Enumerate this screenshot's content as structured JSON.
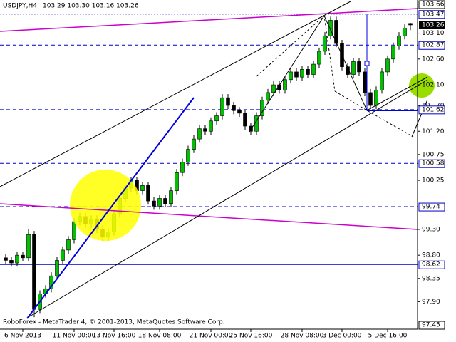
{
  "chart_data": {
    "type": "candlestick",
    "header": {
      "symbol": "USDJPY,H4",
      "quote": "103.29 103.30 103.16 103.26"
    },
    "footer": "RoboForex - MetaTrader 4, © 2001-2013, MetaQuotes Software Corp.",
    "categories": [
      null,
      null,
      null,
      "6 Nov 2013",
      null,
      null,
      null,
      null,
      null,
      null,
      null,
      null,
      "11 Nov 00:00",
      null,
      null,
      null,
      null,
      null,
      null,
      "13 Nov 16:00",
      null,
      null,
      null,
      null,
      null,
      null,
      null,
      "18 Nov 08:00",
      null,
      null,
      null,
      null,
      null,
      null,
      null,
      null,
      "21 Nov 00:00",
      null,
      null,
      null,
      null,
      null,
      null,
      "25 Nov 16:00",
      null,
      null,
      null,
      null,
      null,
      null,
      null,
      null,
      "28 Nov 08:00",
      null,
      null,
      null,
      null,
      null,
      null,
      "3 Dec 00:00",
      null,
      null,
      null,
      null,
      null,
      null,
      null,
      "5 Dec 16:00",
      null,
      null,
      null,
      null
    ],
    "candles": {
      "open": [
        98.75,
        98.7,
        98.65,
        98.8,
        98.75,
        99.2,
        97.75,
        98.05,
        98.15,
        98.4,
        98.7,
        98.9,
        99.1,
        99.45,
        99.55,
        99.4,
        99.5,
        99.3,
        99.15,
        99.25,
        99.6,
        99.9,
        100.1,
        100.25,
        100.05,
        100.15,
        99.85,
        99.75,
        99.9,
        99.8,
        100.05,
        100.4,
        100.6,
        100.85,
        101.05,
        101.25,
        101.2,
        101.4,
        101.5,
        101.85,
        101.7,
        101.6,
        101.55,
        101.3,
        101.2,
        101.5,
        101.8,
        101.95,
        102.1,
        102.0,
        102.2,
        102.35,
        102.25,
        102.4,
        102.3,
        102.5,
        102.75,
        103.05,
        103.35,
        102.9,
        102.45,
        102.3,
        102.55,
        102.35,
        101.95,
        101.7,
        102.0,
        102.35,
        102.6,
        102.85,
        103.05,
        103.29
      ],
      "high": [
        98.82,
        98.77,
        98.87,
        98.87,
        99.3,
        99.27,
        98.12,
        98.22,
        98.47,
        98.77,
        98.97,
        99.17,
        99.52,
        99.62,
        99.62,
        99.57,
        99.57,
        99.37,
        99.32,
        99.67,
        99.97,
        100.17,
        100.32,
        100.32,
        100.22,
        100.22,
        99.92,
        99.97,
        99.97,
        100.12,
        100.47,
        100.67,
        100.92,
        101.12,
        101.32,
        101.32,
        101.47,
        101.57,
        101.92,
        101.92,
        101.77,
        101.67,
        101.62,
        101.37,
        101.57,
        101.87,
        102.02,
        102.17,
        102.17,
        102.27,
        102.42,
        102.42,
        102.47,
        102.47,
        102.57,
        102.82,
        103.12,
        103.42,
        103.42,
        102.97,
        102.52,
        102.62,
        102.62,
        102.42,
        102.02,
        102.07,
        102.42,
        102.67,
        102.92,
        103.12,
        103.27,
        103.3
      ],
      "low": [
        98.63,
        98.58,
        98.58,
        98.68,
        98.68,
        97.6,
        97.68,
        97.98,
        98.08,
        98.33,
        98.63,
        98.83,
        99.03,
        99.38,
        99.33,
        99.33,
        99.23,
        99.08,
        99.08,
        99.18,
        99.53,
        99.83,
        100.03,
        99.98,
        99.98,
        99.78,
        99.68,
        99.68,
        99.73,
        99.73,
        99.98,
        100.33,
        100.53,
        100.78,
        100.98,
        101.13,
        101.13,
        101.33,
        101.43,
        101.63,
        101.53,
        101.48,
        101.23,
        101.13,
        101.13,
        101.43,
        101.73,
        101.88,
        101.93,
        101.93,
        102.13,
        102.18,
        102.18,
        102.23,
        102.23,
        102.43,
        102.68,
        102.98,
        102.83,
        102.38,
        102.23,
        102.23,
        102.28,
        101.88,
        101.63,
        101.63,
        101.93,
        102.28,
        102.53,
        102.78,
        102.98,
        103.16
      ],
      "close": [
        98.7,
        98.65,
        98.8,
        98.75,
        99.2,
        97.75,
        98.05,
        98.15,
        98.4,
        98.7,
        98.9,
        99.1,
        99.45,
        99.55,
        99.4,
        99.5,
        99.3,
        99.15,
        99.25,
        99.6,
        99.9,
        100.1,
        100.25,
        100.05,
        100.15,
        99.85,
        99.75,
        99.9,
        99.8,
        100.05,
        100.4,
        100.6,
        100.85,
        101.05,
        101.25,
        101.2,
        101.4,
        101.5,
        101.85,
        101.7,
        101.6,
        101.55,
        101.3,
        101.2,
        101.5,
        101.8,
        101.95,
        102.1,
        102.0,
        102.2,
        102.35,
        102.25,
        102.4,
        102.3,
        102.5,
        102.75,
        103.05,
        103.35,
        102.9,
        102.45,
        102.3,
        102.55,
        102.35,
        101.95,
        101.7,
        102.0,
        102.35,
        102.6,
        102.85,
        103.05,
        103.2,
        103.26
      ]
    },
    "up_color": "#00c000",
    "down_color": "#000000",
    "ylim": [
      97.45,
      103.66
    ],
    "yticks": [
      {
        "value": 103.1,
        "label": "103.10"
      },
      {
        "value": 102.6,
        "label": "102.60"
      },
      {
        "value": 102.1,
        "label": "102.10"
      },
      {
        "value": 101.7,
        "label": "101.70"
      },
      {
        "value": 101.2,
        "label": "101.20"
      },
      100.75,
      100.25,
      {
        "value": 99.3,
        "label": "99.30"
      },
      {
        "value": 98.8,
        "label": "98.80"
      },
      98.35,
      {
        "value": 97.9,
        "label": "97.90"
      }
    ],
    "levels": [
      {
        "value": 103.47,
        "style": "dotted"
      },
      {
        "value": 102.87,
        "style": "dashed"
      },
      {
        "value": 101.62,
        "style": "dashed"
      },
      {
        "value": 100.58,
        "style": "dashed"
      },
      {
        "value": 99.74,
        "style": "dashed"
      },
      {
        "value": 98.62,
        "style": "solid"
      }
    ],
    "level_color": "#0000cc"
  }
}
